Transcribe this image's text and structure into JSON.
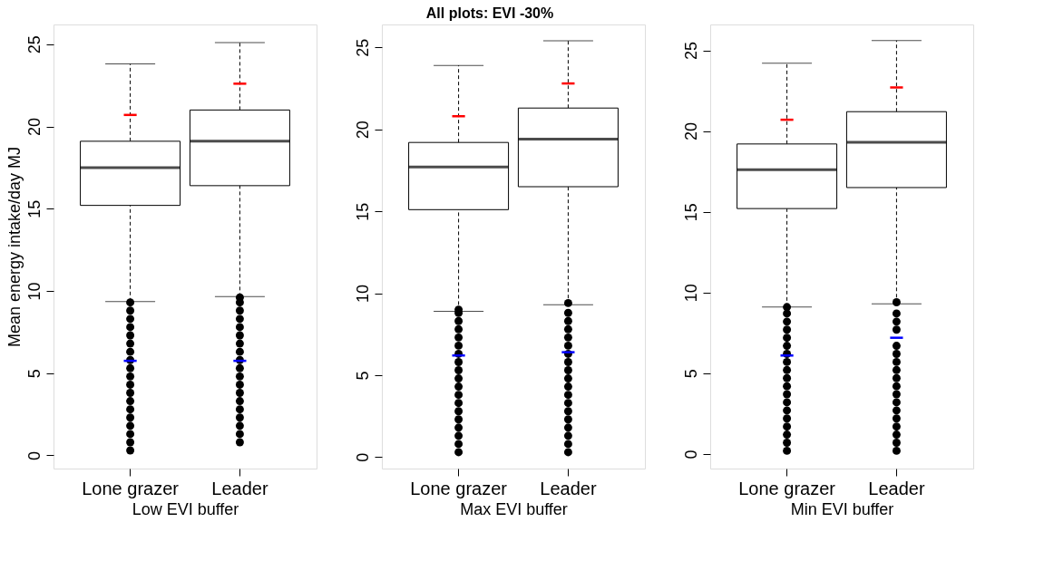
{
  "chart_data": [
    {
      "type": "box",
      "ylabel": "Mean energy intake/day MJ",
      "xlabel": "Low EVI buffer",
      "categories": [
        "Lone grazer",
        "Leader"
      ],
      "ylim": [
        -0.8,
        26.2
      ],
      "yticks": [
        0,
        5,
        10,
        15,
        20,
        25
      ],
      "grid": false,
      "boxes": [
        {
          "low": 9.35,
          "q1": 15.2,
          "median": 17.5,
          "q3": 19.1,
          "high": 23.8,
          "outliers": [
            0.3,
            0.8,
            1.3,
            1.8,
            2.3,
            2.8,
            3.3,
            3.8,
            4.3,
            4.8,
            5.3,
            5.8,
            6.3,
            6.8,
            7.3,
            7.8,
            8.3,
            8.8,
            9.3
          ]
        },
        {
          "low": 9.65,
          "q1": 16.4,
          "median": 19.1,
          "q3": 21.0,
          "high": 25.1,
          "outliers": [
            0.8,
            1.3,
            1.8,
            2.3,
            2.8,
            3.3,
            3.8,
            4.3,
            4.8,
            5.3,
            5.8,
            6.3,
            6.8,
            7.3,
            7.8,
            8.3,
            8.8,
            9.3,
            9.6
          ]
        }
      ],
      "series": [
        {
          "type": "scatter",
          "color": "#ff0000",
          "x": [
            "Lone grazer",
            "Leader"
          ],
          "values": [
            20.7,
            22.6
          ]
        },
        {
          "type": "scatter",
          "color": "#0000ff",
          "x": [
            "Lone grazer",
            "Leader"
          ],
          "values": [
            5.75,
            5.75
          ]
        }
      ]
    },
    {
      "type": "box",
      "title": "All plots: EVI -30%",
      "xlabel": "Max EVI buffer",
      "categories": [
        "Lone grazer",
        "Leader"
      ],
      "ylim": [
        -0.7,
        26.4
      ],
      "yticks": [
        0,
        5,
        10,
        15,
        20,
        25
      ],
      "grid": false,
      "boxes": [
        {
          "low": 8.9,
          "q1": 15.1,
          "median": 17.7,
          "q3": 19.2,
          "high": 23.9,
          "outliers": [
            0.3,
            0.8,
            1.3,
            1.8,
            2.3,
            2.8,
            3.3,
            3.8,
            4.3,
            4.8,
            5.3,
            5.8,
            6.3,
            6.8,
            7.3,
            7.8,
            8.3,
            8.8,
            9.0
          ]
        },
        {
          "low": 9.3,
          "q1": 16.5,
          "median": 19.4,
          "q3": 21.3,
          "high": 25.4,
          "outliers": [
            0.3,
            0.8,
            1.3,
            1.8,
            2.3,
            2.8,
            3.3,
            3.8,
            4.3,
            4.8,
            5.3,
            5.8,
            6.3,
            6.8,
            7.3,
            7.8,
            8.3,
            8.8,
            9.4
          ]
        }
      ],
      "series": [
        {
          "type": "scatter",
          "color": "#ff0000",
          "x": [
            "Lone grazer",
            "Leader"
          ],
          "values": [
            20.8,
            22.8
          ]
        },
        {
          "type": "scatter",
          "color": "#0000ff",
          "x": [
            "Lone grazer",
            "Leader"
          ],
          "values": [
            6.2,
            6.4
          ]
        }
      ]
    },
    {
      "type": "box",
      "xlabel": "Min EVI buffer",
      "categories": [
        "Lone grazer",
        "Leader"
      ],
      "ylim": [
        -0.9,
        26.6
      ],
      "yticks": [
        0,
        5,
        10,
        15,
        20,
        25
      ],
      "grid": false,
      "boxes": [
        {
          "low": 9.1,
          "q1": 15.2,
          "median": 17.6,
          "q3": 19.2,
          "high": 24.2,
          "outliers": [
            0.2,
            0.7,
            1.2,
            1.7,
            2.2,
            2.7,
            3.2,
            3.7,
            4.2,
            4.7,
            5.2,
            5.7,
            6.2,
            6.7,
            7.2,
            7.7,
            8.2,
            8.7,
            9.1
          ]
        },
        {
          "low": 9.3,
          "q1": 16.5,
          "median": 19.3,
          "q3": 21.2,
          "high": 25.6,
          "outliers": [
            0.2,
            0.7,
            1.2,
            1.7,
            2.2,
            2.7,
            3.2,
            3.7,
            4.2,
            4.7,
            5.2,
            5.7,
            6.2,
            6.7,
            7.7,
            8.2,
            8.7,
            9.4
          ]
        }
      ],
      "series": [
        {
          "type": "scatter",
          "color": "#ff0000",
          "x": [
            "Lone grazer",
            "Leader"
          ],
          "values": [
            20.7,
            22.7
          ]
        },
        {
          "type": "scatter",
          "color": "#0000ff",
          "x": [
            "Lone grazer",
            "Leader"
          ],
          "values": [
            6.1,
            7.2
          ]
        }
      ]
    }
  ]
}
